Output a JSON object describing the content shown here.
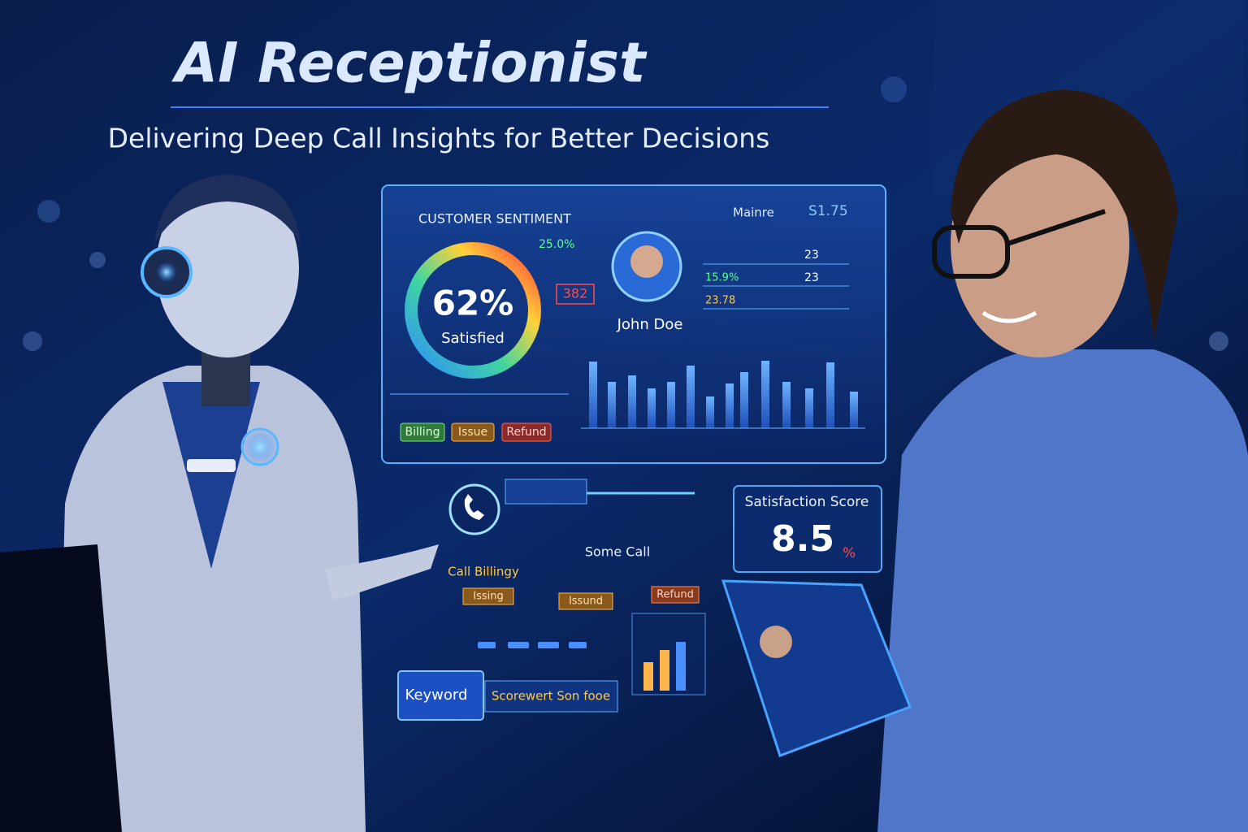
{
  "header": {
    "title": "AI Receptionist",
    "subtitle": "Delivering Deep Call Insights for Better Decisions"
  },
  "dashboard": {
    "title": "CUSTOMER SENTIMENT",
    "header_label": "Mainre",
    "header_value": "S1.75",
    "gauge": {
      "value": "62%",
      "label": "Satisfied"
    },
    "gauge_note": "25.0%",
    "alert": "382",
    "agent": "John Doe",
    "stats": {
      "left": [
        "15.9%",
        "23.78"
      ],
      "right": [
        "23",
        "23"
      ]
    },
    "tags": [
      "Billing",
      "Issue",
      "Refund"
    ]
  },
  "call_flow": {
    "call_label": "Some Call",
    "topic": "Call Billingy",
    "tags": [
      "Issing",
      "Issund",
      "Refund"
    ]
  },
  "score": {
    "title": "Satisfaction Score",
    "value": "8.5",
    "unit": "%"
  },
  "keyword": {
    "label": "Keyword",
    "text": "Scorewert Son fooe"
  }
}
